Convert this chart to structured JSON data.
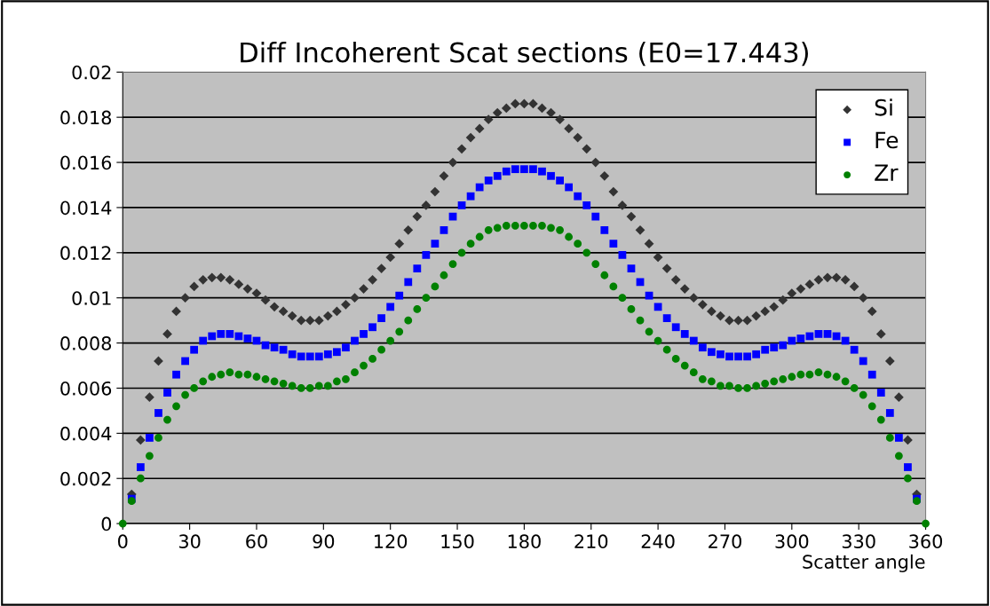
{
  "chart_data": {
    "type": "scatter",
    "title": "Diff Incoherent Scat sections (E0=17.443)",
    "xlabel": "Scatter angle",
    "x": [
      0,
      4,
      8,
      12,
      16,
      20,
      24,
      28,
      32,
      36,
      40,
      44,
      48,
      52,
      56,
      60,
      64,
      68,
      72,
      76,
      80,
      84,
      88,
      92,
      96,
      100,
      104,
      108,
      112,
      116,
      120,
      124,
      128,
      132,
      136,
      140,
      144,
      148,
      152,
      156,
      160,
      164,
      168,
      172,
      176,
      180,
      184,
      188,
      192,
      196,
      200,
      204,
      208,
      212,
      216,
      220,
      224,
      228,
      232,
      236,
      240,
      244,
      248,
      252,
      256,
      260,
      264,
      268,
      272,
      276,
      280,
      284,
      288,
      292,
      296,
      300,
      304,
      308,
      312,
      316,
      320,
      324,
      328,
      332,
      336,
      340,
      344,
      348,
      352,
      356,
      360
    ],
    "series": [
      {
        "name": "Si",
        "color": "#333333",
        "marker": "diamond",
        "values": [
          null,
          0.0013,
          0.0037,
          0.0056,
          0.0072,
          0.0084,
          0.0094,
          0.01,
          0.0105,
          0.0108,
          0.0109,
          0.0109,
          0.0108,
          0.0106,
          0.0104,
          0.0102,
          0.0099,
          0.0096,
          0.0094,
          0.0092,
          0.009,
          0.009,
          0.009,
          0.0092,
          0.0094,
          0.0097,
          0.01,
          0.0104,
          0.0108,
          0.0113,
          0.0118,
          0.0124,
          0.013,
          0.0136,
          0.0141,
          0.0147,
          0.0154,
          0.016,
          0.0166,
          0.0171,
          0.0175,
          0.0179,
          0.0182,
          0.0184,
          0.0186,
          0.0186,
          0.0186,
          0.0184,
          0.0182,
          0.0179,
          0.0175,
          0.0171,
          0.0166,
          0.016,
          0.0154,
          0.0147,
          0.0141,
          0.0136,
          0.013,
          0.0124,
          0.0118,
          0.0113,
          0.0108,
          0.0104,
          0.01,
          0.0097,
          0.0094,
          0.0092,
          0.009,
          0.009,
          0.009,
          0.0092,
          0.0094,
          0.0096,
          0.0099,
          0.0102,
          0.0104,
          0.0106,
          0.0108,
          0.0109,
          0.0109,
          0.0108,
          0.0105,
          0.01,
          0.0094,
          0.0084,
          0.0072,
          0.0056,
          0.0037,
          0.0013,
          null
        ]
      },
      {
        "name": "Fe",
        "color": "#0000ff",
        "marker": "square",
        "values": [
          null,
          0.0011,
          0.0025,
          0.0038,
          0.0049,
          0.0058,
          0.0066,
          0.0072,
          0.0077,
          0.0081,
          0.0083,
          0.0084,
          0.0084,
          0.0083,
          0.0082,
          0.0081,
          0.0079,
          0.0078,
          0.0077,
          0.0075,
          0.0074,
          0.0074,
          0.0074,
          0.0075,
          0.0076,
          0.0078,
          0.0081,
          0.0084,
          0.0087,
          0.0091,
          0.0096,
          0.0101,
          0.0107,
          0.0113,
          0.0119,
          0.0124,
          0.013,
          0.0136,
          0.0141,
          0.0145,
          0.0149,
          0.0152,
          0.0154,
          0.0156,
          0.0157,
          0.0157,
          0.0157,
          0.0156,
          0.0154,
          0.0152,
          0.0149,
          0.0145,
          0.0141,
          0.0136,
          0.013,
          0.0124,
          0.0119,
          0.0113,
          0.0107,
          0.0101,
          0.0096,
          0.0091,
          0.0087,
          0.0084,
          0.0081,
          0.0078,
          0.0076,
          0.0075,
          0.0074,
          0.0074,
          0.0074,
          0.0075,
          0.0077,
          0.0078,
          0.0079,
          0.0081,
          0.0082,
          0.0083,
          0.0084,
          0.0084,
          0.0083,
          0.0081,
          0.0077,
          0.0072,
          0.0066,
          0.0058,
          0.0049,
          0.0038,
          0.0025,
          0.0011,
          null
        ]
      },
      {
        "name": "Zr",
        "color": "#008000",
        "marker": "circle",
        "values": [
          0,
          0.001,
          0.002,
          0.003,
          0.0038,
          0.0046,
          0.0052,
          0.0057,
          0.006,
          0.0063,
          0.0065,
          0.0066,
          0.0067,
          0.0066,
          0.0066,
          0.0065,
          0.0064,
          0.0063,
          0.0062,
          0.0061,
          0.006,
          0.006,
          0.0061,
          0.0061,
          0.0063,
          0.0064,
          0.0067,
          0.007,
          0.0073,
          0.0077,
          0.0081,
          0.0085,
          0.009,
          0.0095,
          0.01,
          0.0105,
          0.011,
          0.0115,
          0.012,
          0.0124,
          0.0127,
          0.013,
          0.0131,
          0.0132,
          0.0132,
          0.0132,
          0.0132,
          0.0132,
          0.0131,
          0.013,
          0.0127,
          0.0124,
          0.012,
          0.0115,
          0.011,
          0.0105,
          0.01,
          0.0095,
          0.009,
          0.0085,
          0.0081,
          0.0077,
          0.0073,
          0.007,
          0.0067,
          0.0064,
          0.0063,
          0.0061,
          0.0061,
          0.006,
          0.006,
          0.0061,
          0.0062,
          0.0063,
          0.0064,
          0.0065,
          0.0066,
          0.0066,
          0.0067,
          0.0066,
          0.0065,
          0.0063,
          0.006,
          0.0057,
          0.0052,
          0.0046,
          0.0038,
          0.003,
          0.002,
          0.001,
          0
        ]
      }
    ],
    "xlim": [
      0,
      360
    ],
    "xticks": [
      0,
      30,
      60,
      90,
      120,
      150,
      180,
      210,
      240,
      270,
      300,
      330,
      360
    ],
    "ylim": [
      0,
      0.02
    ],
    "yticks": [
      0,
      0.002,
      0.004,
      0.006,
      0.008,
      0.01,
      0.012,
      0.014,
      0.016,
      0.018,
      0.02
    ],
    "grid": "y",
    "legend": "top right"
  }
}
